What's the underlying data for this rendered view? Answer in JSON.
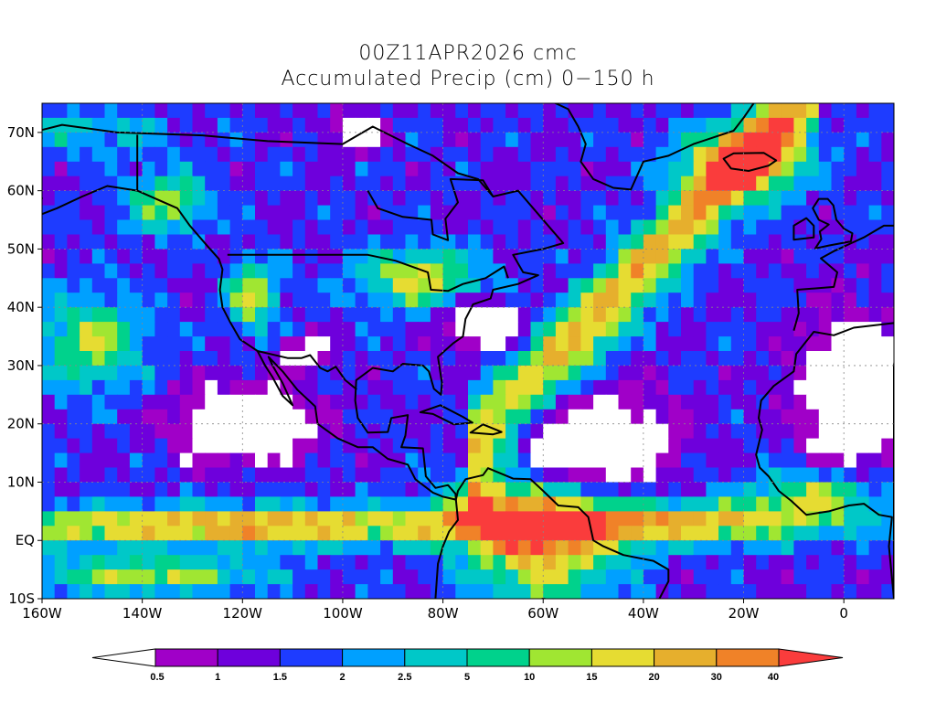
{
  "title": {
    "line1": "00Z11APR2026 cmc",
    "line2": "Accumulated Precip (cm) 0−150 h"
  },
  "map": {
    "extent": {
      "lon": [
        -160,
        10
      ],
      "lat": [
        -10,
        75
      ]
    },
    "x_ticks": [
      {
        "lon": -160,
        "label": "160W"
      },
      {
        "lon": -140,
        "label": "140W"
      },
      {
        "lon": -120,
        "label": "120W"
      },
      {
        "lon": -100,
        "label": "100W"
      },
      {
        "lon": -80,
        "label": "80W"
      },
      {
        "lon": -60,
        "label": "60W"
      },
      {
        "lon": -40,
        "label": "40W"
      },
      {
        "lon": -20,
        "label": "20W"
      },
      {
        "lon": 0,
        "label": "0"
      }
    ],
    "y_ticks": [
      {
        "lat": -10,
        "label": "10S"
      },
      {
        "lat": 0,
        "label": "EQ"
      },
      {
        "lat": 10,
        "label": "10N"
      },
      {
        "lat": 20,
        "label": "20N"
      },
      {
        "lat": 30,
        "label": "30N"
      },
      {
        "lat": 40,
        "label": "40N"
      },
      {
        "lat": 50,
        "label": "50N"
      },
      {
        "lat": 60,
        "label": "60N"
      },
      {
        "lat": 70,
        "label": "70N"
      }
    ],
    "grid": true
  },
  "colorbar": {
    "under_color": "#ffffff",
    "levels": [
      "0.5",
      "1",
      "1.5",
      "2",
      "2.5",
      "5",
      "10",
      "15",
      "20",
      "30",
      "40"
    ],
    "colors": [
      "#a000c8",
      "#6e00dc",
      "#1e3cff",
      "#00a0ff",
      "#00c8c8",
      "#00d28c",
      "#a0e632",
      "#e6dc32",
      "#e6af2d",
      "#f08228",
      "#fa3c3c"
    ]
  }
}
